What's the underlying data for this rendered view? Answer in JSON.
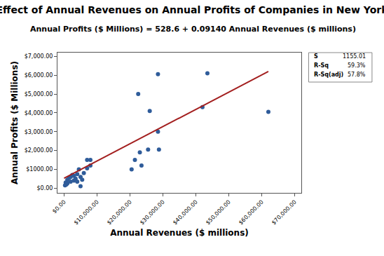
{
  "chart_data": {
    "type": "scatter",
    "title": "Effect of Annual Revenues on Annual Profits of Companies in New York",
    "subtitle": "Annual Profits ($ Millions) = 528.6 + 0.09140 Annual Revenues ($ millions)",
    "x_label": "Annual Revenues ($ millions)",
    "y_label": "Annual Profits ($ Millions)",
    "xlim": [
      -2000,
      72000
    ],
    "ylim": [
      -250,
      7200
    ],
    "xticks": [
      {
        "value": 0,
        "label": "$0.00"
      },
      {
        "value": 10000,
        "label": "$10,000.00"
      },
      {
        "value": 20000,
        "label": "$20,000.00"
      },
      {
        "value": 30000,
        "label": "$30,000.00"
      },
      {
        "value": 40000,
        "label": "$40,000.00"
      },
      {
        "value": 50000,
        "label": "$50,000.00"
      },
      {
        "value": 60000,
        "label": "$60,000.00"
      },
      {
        "value": 70000,
        "label": "$70,000.00"
      }
    ],
    "yticks": [
      {
        "value": 0,
        "label": "$0.00"
      },
      {
        "value": 1000,
        "label": "$1000.00"
      },
      {
        "value": 2000,
        "label": "$2,000.00"
      },
      {
        "value": 3000,
        "label": "$3,000.00"
      },
      {
        "value": 4000,
        "label": "$4,000.00"
      },
      {
        "value": 5000,
        "label": "$5,000.00"
      },
      {
        "value": 6000,
        "label": "$6,000.00"
      },
      {
        "value": 7000,
        "label": "$7,000.00"
      }
    ],
    "grid": false,
    "series": [
      {
        "type": "scatter",
        "marker": "circle",
        "color": "#2f5c9a",
        "x": [
          300,
          500,
          700,
          1000,
          1000,
          1500,
          2000,
          2000,
          2500,
          3000,
          3000,
          3500,
          4000,
          4000,
          4500,
          5000,
          5000,
          5500,
          6000,
          7000,
          7000,
          8000,
          8000,
          20500,
          21500,
          22500,
          23000,
          23500,
          25500,
          26000,
          28500,
          28500,
          28800,
          42000,
          43500,
          62000
        ],
        "values": [
          150,
          300,
          200,
          450,
          250,
          550,
          600,
          350,
          700,
          400,
          650,
          500,
          350,
          750,
          1000,
          600,
          100,
          450,
          800,
          1500,
          1050,
          1500,
          1200,
          1000,
          1500,
          5000,
          1900,
          1200,
          2050,
          4100,
          6050,
          3000,
          2050,
          4300,
          6100,
          4050
        ]
      },
      {
        "type": "line",
        "line_style": "solid",
        "color": "#a31f1f",
        "x": [
          0,
          62000
        ],
        "values": [
          528.6,
          6195
        ]
      }
    ],
    "stats": [
      {
        "label": "S",
        "value": "1155.01"
      },
      {
        "label": "R-Sq",
        "value": "59.3%"
      },
      {
        "label": "R-Sq(adj)",
        "value": "57.8%"
      }
    ]
  }
}
